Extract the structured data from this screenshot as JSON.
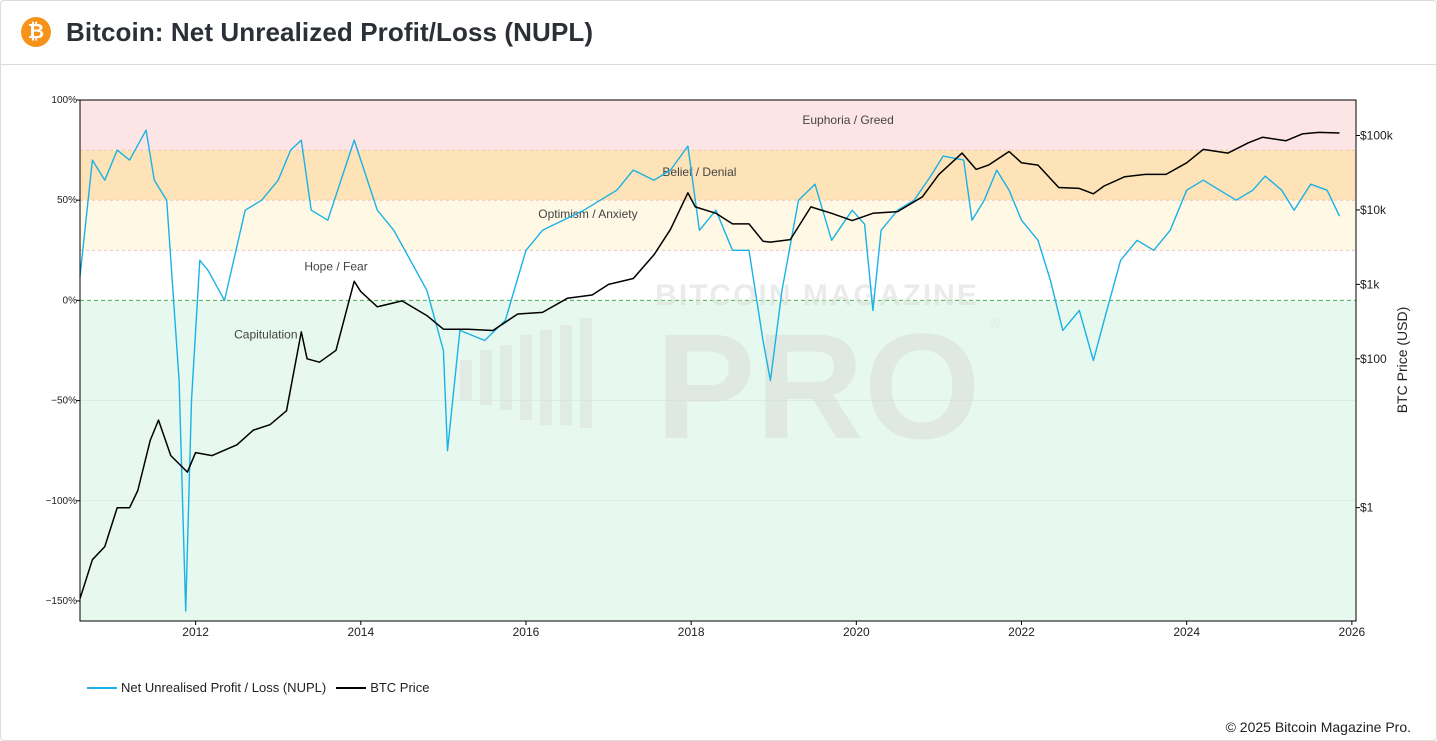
{
  "header": {
    "title": "Bitcoin: Net Unrealized Profit/Loss (NUPL)",
    "badge_symbol": "₿"
  },
  "watermark": {
    "line1": "BITCOIN MAGAZINE",
    "line2": "PRO",
    "mark": "®"
  },
  "legend": {
    "nupl_label": "Net Unrealised Profit / Loss (NUPL)",
    "price_label": "BTC Price"
  },
  "footer": {
    "copyright": "© 2025 Bitcoin Magazine Pro."
  },
  "colors": {
    "nupl": "#1ab2e6",
    "price": "#000000",
    "euphoria_zone": "#fde5e5",
    "belief_zone": "#fde3b7",
    "optimism_zone": "#fff8e5",
    "capitulation_zone": "#e7f8ef",
    "zero_line": "#4caf50"
  },
  "chart_data": {
    "type": "line",
    "title": "Bitcoin: Net Unrealized Profit/Loss (NUPL)",
    "xlabel": "",
    "ylabel_left": "",
    "ylabel_right": "BTC Price (USD)",
    "xlim": [
      2010.6,
      2026.05
    ],
    "ylim_left": [
      -1.6,
      1.0
    ],
    "ylim_right_log": [
      0.03,
      300000
    ],
    "right_axis_scale": "log",
    "x_ticks": [
      "2012",
      "2014",
      "2016",
      "2018",
      "2020",
      "2022",
      "2024",
      "2026"
    ],
    "y_left_ticks": [
      {
        "v": 1.0,
        "label": "100%"
      },
      {
        "v": 0.5,
        "label": "50%"
      },
      {
        "v": 0.0,
        "label": "0%"
      },
      {
        "v": -0.5,
        "label": "−50%"
      },
      {
        "v": -1.0,
        "label": "−100%"
      },
      {
        "v": -1.5,
        "label": "−150%"
      }
    ],
    "y_right_ticks": [
      {
        "v": 100000,
        "label": "$100k"
      },
      {
        "v": 10000,
        "label": "$10k"
      },
      {
        "v": 1000,
        "label": "$1k"
      },
      {
        "v": 100,
        "label": "$100"
      },
      {
        "v": 1,
        "label": "$1"
      }
    ],
    "zones": [
      {
        "name": "Euphoria / Greed",
        "from": 0.75,
        "to": 1.0
      },
      {
        "name": "Belief / Denial",
        "from": 0.5,
        "to": 0.75
      },
      {
        "name": "Optimism / Anxiety",
        "from": 0.25,
        "to": 0.5
      },
      {
        "name": "Hope / Fear",
        "from": 0.0,
        "to": 0.25
      },
      {
        "name": "Capitulation",
        "from": -1.6,
        "to": 0.0
      }
    ],
    "zone_labels": [
      {
        "text": "Euphoria / Greed",
        "x": 2019.9,
        "y": 0.9
      },
      {
        "text": "Belief / Denial",
        "x": 2018.1,
        "y": 0.64
      },
      {
        "text": "Optimism / Anxiety",
        "x": 2016.75,
        "y": 0.43
      },
      {
        "text": "Hope / Fear",
        "x": 2013.7,
        "y": 0.17
      },
      {
        "text": "Capitulation",
        "x": 2012.85,
        "y": -0.17
      }
    ],
    "legend_position": "bottom-left",
    "series": [
      {
        "name": "Net Unrealised Profit / Loss (NUPL)",
        "axis": "left",
        "x": [
          2010.6,
          2010.75,
          2010.9,
          2011.05,
          2011.2,
          2011.4,
          2011.5,
          2011.65,
          2011.8,
          2011.88,
          2011.95,
          2012.05,
          2012.15,
          2012.35,
          2012.6,
          2012.8,
          2013.0,
          2013.15,
          2013.28,
          2013.4,
          2013.6,
          2013.8,
          2013.92,
          2014.0,
          2014.2,
          2014.4,
          2014.6,
          2014.8,
          2015.0,
          2015.05,
          2015.2,
          2015.5,
          2015.75,
          2016.0,
          2016.2,
          2016.45,
          2016.7,
          2016.9,
          2017.1,
          2017.3,
          2017.55,
          2017.75,
          2017.96,
          2018.1,
          2018.3,
          2018.5,
          2018.7,
          2018.87,
          2018.96,
          2019.1,
          2019.3,
          2019.5,
          2019.7,
          2019.95,
          2020.1,
          2020.2,
          2020.3,
          2020.5,
          2020.7,
          2020.9,
          2021.05,
          2021.3,
          2021.4,
          2021.55,
          2021.7,
          2021.85,
          2022.0,
          2022.2,
          2022.35,
          2022.5,
          2022.7,
          2022.87,
          2023.0,
          2023.2,
          2023.4,
          2023.6,
          2023.8,
          2024.0,
          2024.2,
          2024.4,
          2024.6,
          2024.8,
          2024.95,
          2025.15,
          2025.3,
          2025.5,
          2025.7,
          2025.85
        ],
        "values": [
          0.12,
          0.7,
          0.6,
          0.75,
          0.7,
          0.85,
          0.6,
          0.5,
          -0.4,
          -1.55,
          -0.5,
          0.2,
          0.15,
          0.0,
          0.45,
          0.5,
          0.6,
          0.75,
          0.8,
          0.45,
          0.4,
          0.65,
          0.8,
          0.7,
          0.45,
          0.35,
          0.2,
          0.05,
          -0.25,
          -0.75,
          -0.15,
          -0.2,
          -0.1,
          0.25,
          0.35,
          0.4,
          0.45,
          0.5,
          0.55,
          0.65,
          0.6,
          0.65,
          0.77,
          0.35,
          0.45,
          0.25,
          0.25,
          -0.2,
          -0.4,
          0.05,
          0.5,
          0.58,
          0.3,
          0.45,
          0.38,
          -0.05,
          0.35,
          0.45,
          0.5,
          0.62,
          0.72,
          0.7,
          0.4,
          0.5,
          0.65,
          0.55,
          0.4,
          0.3,
          0.1,
          -0.15,
          -0.05,
          -0.3,
          -0.1,
          0.2,
          0.3,
          0.25,
          0.35,
          0.55,
          0.6,
          0.55,
          0.5,
          0.55,
          0.62,
          0.55,
          0.45,
          0.58,
          0.55,
          0.42
        ]
      },
      {
        "name": "BTC Price",
        "axis": "right",
        "x": [
          2010.6,
          2010.75,
          2010.9,
          2011.05,
          2011.2,
          2011.3,
          2011.45,
          2011.55,
          2011.7,
          2011.9,
          2012.0,
          2012.2,
          2012.5,
          2012.7,
          2012.9,
          2013.1,
          2013.28,
          2013.35,
          2013.5,
          2013.7,
          2013.92,
          2014.0,
          2014.2,
          2014.5,
          2014.8,
          2015.0,
          2015.3,
          2015.6,
          2015.9,
          2016.2,
          2016.5,
          2016.8,
          2017.0,
          2017.3,
          2017.55,
          2017.75,
          2017.96,
          2018.05,
          2018.3,
          2018.5,
          2018.7,
          2018.87,
          2018.96,
          2019.2,
          2019.45,
          2019.7,
          2019.95,
          2020.2,
          2020.5,
          2020.8,
          2021.0,
          2021.28,
          2021.45,
          2021.6,
          2021.85,
          2022.0,
          2022.2,
          2022.45,
          2022.7,
          2022.87,
          2023.0,
          2023.25,
          2023.5,
          2023.75,
          2024.0,
          2024.2,
          2024.5,
          2024.75,
          2024.92,
          2025.2,
          2025.4,
          2025.6,
          2025.85
        ],
        "values": [
          0.06,
          0.2,
          0.3,
          1.0,
          1.0,
          1.7,
          8.0,
          15.0,
          5.0,
          3.0,
          5.5,
          5.0,
          7.0,
          11.0,
          13.0,
          20.0,
          230.0,
          100.0,
          90.0,
          130.0,
          1100.0,
          800.0,
          500.0,
          600.0,
          380.0,
          250.0,
          250.0,
          240.0,
          400.0,
          420.0,
          650.0,
          720.0,
          1000.0,
          1200.0,
          2500.0,
          5500.0,
          17000.0,
          11000.0,
          9000.0,
          6500.0,
          6500.0,
          3800.0,
          3700.0,
          4000.0,
          11000.0,
          9000.0,
          7200.0,
          9000.0,
          9500.0,
          15000.0,
          30000.0,
          58000.0,
          35000.0,
          40000.0,
          61000.0,
          43000.0,
          40000.0,
          20000.0,
          19500.0,
          16500.0,
          21000.0,
          28000.0,
          30000.0,
          30000.0,
          43000.0,
          65000.0,
          58000.0,
          80000.0,
          95000.0,
          85000.0,
          105000.0,
          110000.0,
          108000.0
        ]
      }
    ]
  }
}
